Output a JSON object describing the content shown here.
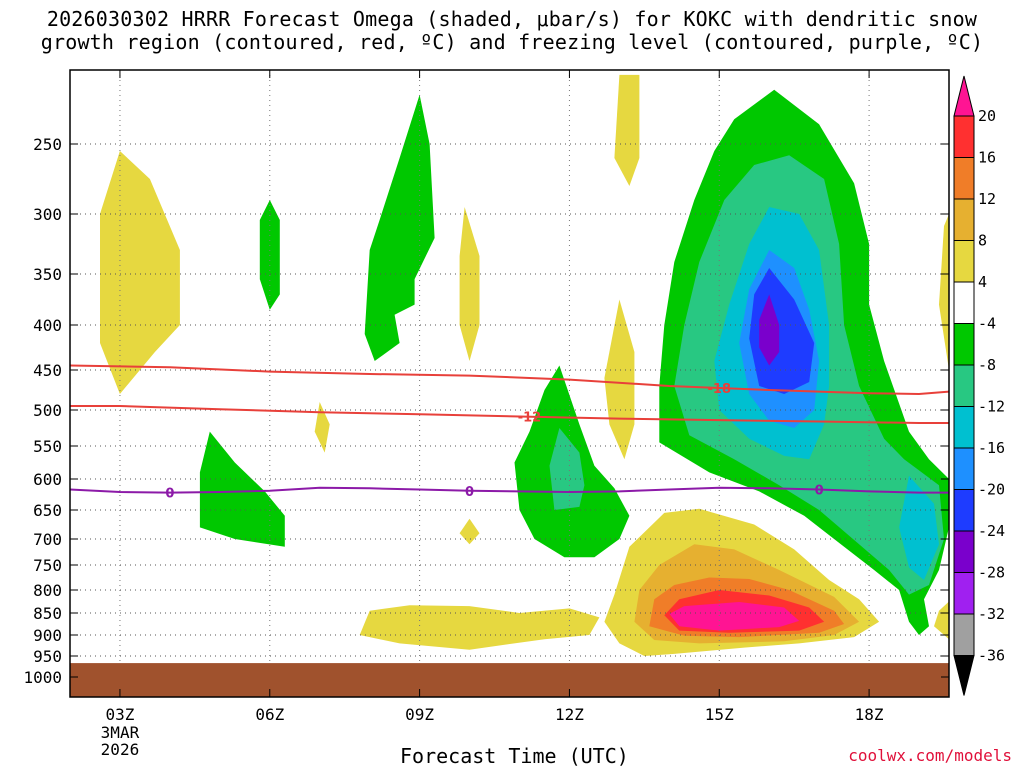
{
  "chart_data": {
    "type": "heatmap",
    "title_line1": "2026030302 HRRR Forecast Omega (shaded, μbar/s) for KOKC with dendritic snow",
    "title_line2": "growth region (contoured, red, ºC) and freezing level (contoured, purple, ºC)",
    "xlabel": "Forecast Time (UTC)",
    "ylabel": "",
    "credit": "coolwx.com/models",
    "x_range": [
      2.0,
      19.6
    ],
    "y_range": [
      220,
      1050
    ],
    "x_ticks": [
      {
        "value": 3,
        "label": "03Z"
      },
      {
        "value": 6,
        "label": "06Z"
      },
      {
        "value": 9,
        "label": "09Z"
      },
      {
        "value": 12,
        "label": "12Z"
      },
      {
        "value": 15,
        "label": "15Z"
      },
      {
        "value": 18,
        "label": "18Z"
      }
    ],
    "date_label_line1": "3MAR",
    "date_label_line2": "2026",
    "y_ticks": [
      250,
      300,
      350,
      400,
      450,
      500,
      550,
      600,
      650,
      700,
      750,
      800,
      850,
      900,
      950,
      1000
    ],
    "surface_pressure": 955,
    "surface_color": "#a0522d",
    "colorbar": {
      "levels": [
        20,
        16,
        12,
        8,
        4,
        -4,
        -8,
        -12,
        -16,
        -20,
        -24,
        -28,
        -32,
        -36
      ],
      "colors": [
        "#ff1493",
        "#ff3030",
        "#f07d28",
        "#e6b030",
        "#e6d840",
        "#ffffff",
        "#00c800",
        "#28c882",
        "#00c0d0",
        "#1e90ff",
        "#1e3cff",
        "#7a00cc",
        "#a020f0",
        "#a0a0a0",
        "#000000"
      ]
    },
    "shading": [
      {
        "color": "#e6d840",
        "points": [
          [
            3.0,
            255
          ],
          [
            3.6,
            275
          ],
          [
            4.2,
            330
          ],
          [
            4.2,
            400
          ],
          [
            3.7,
            430
          ],
          [
            3.0,
            480
          ],
          [
            2.6,
            420
          ],
          [
            2.6,
            300
          ]
        ]
      },
      {
        "color": "#00c800",
        "points": [
          [
            4.8,
            530
          ],
          [
            5.3,
            575
          ],
          [
            5.9,
            620
          ],
          [
            6.3,
            660
          ],
          [
            6.3,
            715
          ],
          [
            5.3,
            700
          ],
          [
            4.6,
            680
          ],
          [
            4.6,
            590
          ]
        ]
      },
      {
        "color": "#00c800",
        "points": [
          [
            6.0,
            290
          ],
          [
            6.2,
            305
          ],
          [
            6.2,
            370
          ],
          [
            6.0,
            385
          ],
          [
            5.8,
            355
          ],
          [
            5.8,
            305
          ]
        ]
      },
      {
        "color": "#e6d840",
        "points": [
          [
            7.0,
            490
          ],
          [
            7.2,
            520
          ],
          [
            7.1,
            560
          ],
          [
            6.9,
            530
          ]
        ]
      },
      {
        "color": "#00c800",
        "points": [
          [
            9.0,
            230
          ],
          [
            9.2,
            250
          ],
          [
            9.3,
            320
          ],
          [
            8.9,
            355
          ],
          [
            8.9,
            380
          ],
          [
            8.5,
            390
          ],
          [
            8.6,
            420
          ],
          [
            8.1,
            440
          ],
          [
            7.9,
            410
          ],
          [
            8.0,
            330
          ],
          [
            8.2,
            305
          ],
          [
            8.6,
            260
          ]
        ]
      },
      {
        "color": "#e6d840",
        "points": [
          [
            9.9,
            295
          ],
          [
            10.2,
            335
          ],
          [
            10.2,
            400
          ],
          [
            10.0,
            440
          ],
          [
            9.8,
            400
          ],
          [
            9.8,
            335
          ]
        ]
      },
      {
        "color": "#e6d840",
        "points": [
          [
            10.0,
            665
          ],
          [
            10.2,
            690
          ],
          [
            10.0,
            710
          ],
          [
            9.8,
            690
          ]
        ]
      },
      {
        "color": "#e6d840",
        "points": [
          [
            13.0,
            222
          ],
          [
            13.4,
            222
          ],
          [
            13.4,
            260
          ],
          [
            13.2,
            280
          ],
          [
            12.9,
            260
          ]
        ]
      },
      {
        "color": "#e6d840",
        "points": [
          [
            13.0,
            375
          ],
          [
            13.3,
            430
          ],
          [
            13.3,
            520
          ],
          [
            13.1,
            570
          ],
          [
            12.8,
            520
          ],
          [
            12.7,
            460
          ]
        ]
      },
      {
        "color": "#00c800",
        "points": [
          [
            11.8,
            445
          ],
          [
            12.2,
            520
          ],
          [
            12.5,
            580
          ],
          [
            12.9,
            615
          ],
          [
            13.2,
            660
          ],
          [
            13.0,
            700
          ],
          [
            12.5,
            735
          ],
          [
            11.9,
            735
          ],
          [
            11.3,
            700
          ],
          [
            11.0,
            650
          ],
          [
            10.9,
            575
          ],
          [
            11.2,
            530
          ],
          [
            11.5,
            475
          ]
        ]
      },
      {
        "color": "#28c882",
        "points": [
          [
            11.8,
            525
          ],
          [
            12.2,
            560
          ],
          [
            12.3,
            610
          ],
          [
            12.2,
            645
          ],
          [
            11.7,
            650
          ],
          [
            11.6,
            580
          ]
        ]
      },
      {
        "color": "#e6d840",
        "points": [
          [
            8.0,
            845
          ],
          [
            8.8,
            833
          ],
          [
            10.0,
            835
          ],
          [
            11.0,
            850
          ],
          [
            12.0,
            840
          ],
          [
            12.6,
            860
          ],
          [
            12.4,
            900
          ],
          [
            11.5,
            910
          ],
          [
            10.0,
            935
          ],
          [
            8.6,
            920
          ],
          [
            7.8,
            900
          ]
        ]
      },
      {
        "color": "#e6d840",
        "points": [
          [
            13.2,
            715
          ],
          [
            13.9,
            655
          ],
          [
            14.6,
            648
          ],
          [
            15.7,
            675
          ],
          [
            16.5,
            720
          ],
          [
            17.2,
            780
          ],
          [
            17.8,
            820
          ],
          [
            18.2,
            870
          ],
          [
            17.7,
            905
          ],
          [
            16.6,
            920
          ],
          [
            15.5,
            930
          ],
          [
            14.1,
            945
          ],
          [
            13.5,
            950
          ],
          [
            13.0,
            920
          ],
          [
            12.7,
            870
          ],
          [
            12.9,
            810
          ]
        ]
      },
      {
        "color": "#e6b030",
        "points": [
          [
            13.8,
            750
          ],
          [
            14.5,
            710
          ],
          [
            15.3,
            720
          ],
          [
            16.2,
            760
          ],
          [
            17.3,
            815
          ],
          [
            17.8,
            870
          ],
          [
            17.3,
            900
          ],
          [
            16.3,
            915
          ],
          [
            14.6,
            920
          ],
          [
            13.7,
            912
          ],
          [
            13.3,
            870
          ],
          [
            13.4,
            800
          ]
        ]
      },
      {
        "color": "#f07d28",
        "points": [
          [
            14.1,
            790
          ],
          [
            14.8,
            775
          ],
          [
            15.6,
            778
          ],
          [
            16.4,
            800
          ],
          [
            17.3,
            845
          ],
          [
            17.5,
            875
          ],
          [
            17.0,
            895
          ],
          [
            15.4,
            905
          ],
          [
            14.3,
            902
          ],
          [
            13.6,
            880
          ],
          [
            13.7,
            820
          ]
        ]
      },
      {
        "color": "#ff3030",
        "points": [
          [
            14.2,
            820
          ],
          [
            15.0,
            800
          ],
          [
            16.0,
            812
          ],
          [
            16.8,
            838
          ],
          [
            17.1,
            870
          ],
          [
            16.6,
            890
          ],
          [
            15.2,
            895
          ],
          [
            14.2,
            890
          ],
          [
            13.9,
            855
          ]
        ]
      },
      {
        "color": "#ff1493",
        "points": [
          [
            14.3,
            835
          ],
          [
            15.4,
            826
          ],
          [
            16.3,
            838
          ],
          [
            16.6,
            868
          ],
          [
            16.2,
            882
          ],
          [
            15.0,
            890
          ],
          [
            14.2,
            880
          ],
          [
            14.0,
            852
          ]
        ]
      },
      {
        "color": "#00c800",
        "points": [
          [
            15.3,
            240
          ],
          [
            16.1,
            228
          ],
          [
            17.0,
            242
          ],
          [
            17.7,
            278
          ],
          [
            18.0,
            325
          ],
          [
            18.0,
            380
          ],
          [
            18.3,
            440
          ],
          [
            18.8,
            530
          ],
          [
            19.2,
            570
          ],
          [
            19.6,
            600
          ],
          [
            19.6,
            680
          ],
          [
            19.4,
            760
          ],
          [
            19.1,
            820
          ],
          [
            19.2,
            880
          ],
          [
            19.0,
            900
          ],
          [
            18.8,
            870
          ],
          [
            18.6,
            800
          ],
          [
            18.1,
            760
          ],
          [
            17.3,
            700
          ],
          [
            16.7,
            660
          ],
          [
            15.8,
            620
          ],
          [
            14.8,
            590
          ],
          [
            13.8,
            545
          ],
          [
            13.8,
            470
          ],
          [
            13.9,
            400
          ],
          [
            14.1,
            340
          ],
          [
            14.5,
            290
          ],
          [
            14.9,
            255
          ]
        ]
      },
      {
        "color": "#28c882",
        "points": [
          [
            15.7,
            265
          ],
          [
            16.4,
            258
          ],
          [
            17.1,
            275
          ],
          [
            17.4,
            325
          ],
          [
            17.5,
            400
          ],
          [
            17.8,
            470
          ],
          [
            18.3,
            540
          ],
          [
            18.7,
            570
          ],
          [
            19.4,
            610
          ],
          [
            19.5,
            700
          ],
          [
            19.2,
            790
          ],
          [
            18.8,
            810
          ],
          [
            18.4,
            760
          ],
          [
            17.8,
            710
          ],
          [
            17.0,
            650
          ],
          [
            16.2,
            610
          ],
          [
            15.3,
            570
          ],
          [
            14.4,
            535
          ],
          [
            14.1,
            470
          ],
          [
            14.3,
            400
          ],
          [
            14.6,
            340
          ],
          [
            15.1,
            290
          ]
        ]
      },
      {
        "color": "#00c0d0",
        "points": [
          [
            16.0,
            295
          ],
          [
            16.6,
            300
          ],
          [
            17.0,
            330
          ],
          [
            17.2,
            400
          ],
          [
            17.2,
            470
          ],
          [
            17.1,
            520
          ],
          [
            16.8,
            570
          ],
          [
            16.3,
            565
          ],
          [
            15.6,
            540
          ],
          [
            15.0,
            500
          ],
          [
            14.9,
            440
          ],
          [
            15.2,
            380
          ],
          [
            15.6,
            325
          ]
        ]
      },
      {
        "color": "#00c0d0",
        "points": [
          [
            18.8,
            595
          ],
          [
            19.3,
            640
          ],
          [
            19.4,
            710
          ],
          [
            19.1,
            780
          ],
          [
            18.8,
            755
          ],
          [
            18.6,
            680
          ]
        ]
      },
      {
        "color": "#1e90ff",
        "points": [
          [
            16.0,
            330
          ],
          [
            16.5,
            345
          ],
          [
            16.8,
            385
          ],
          [
            17.0,
            440
          ],
          [
            16.9,
            500
          ],
          [
            16.5,
            525
          ],
          [
            16.0,
            515
          ],
          [
            15.6,
            480
          ],
          [
            15.4,
            420
          ],
          [
            15.6,
            365
          ]
        ]
      },
      {
        "color": "#1e3cff",
        "points": [
          [
            16.0,
            345
          ],
          [
            16.5,
            375
          ],
          [
            16.9,
            420
          ],
          [
            16.8,
            465
          ],
          [
            16.3,
            480
          ],
          [
            15.8,
            470
          ],
          [
            15.6,
            415
          ],
          [
            15.7,
            370
          ]
        ]
      },
      {
        "color": "#7a00cc",
        "points": [
          [
            16.0,
            370
          ],
          [
            16.2,
            400
          ],
          [
            16.2,
            430
          ],
          [
            16.0,
            445
          ],
          [
            15.8,
            425
          ],
          [
            15.8,
            395
          ]
        ]
      },
      {
        "color": "#e6d840",
        "points": [
          [
            19.6,
            300
          ],
          [
            19.6,
            450
          ],
          [
            19.4,
            380
          ],
          [
            19.5,
            310
          ]
        ]
      },
      {
        "color": "#e6d840",
        "points": [
          [
            19.6,
            825
          ],
          [
            19.6,
            910
          ],
          [
            19.3,
            880
          ],
          [
            19.4,
            845
          ]
        ]
      }
    ],
    "series": [
      {
        "name": "-18 ºC",
        "color": "#e8403a",
        "label": "-18",
        "label_x": 15.0,
        "x": [
          2.0,
          4.0,
          6.0,
          8.0,
          10.0,
          12.0,
          14.0,
          16.0,
          18.0,
          19.0,
          19.6
        ],
        "y": [
          445,
          447,
          452,
          455,
          457,
          462,
          470,
          475,
          479,
          480,
          477
        ]
      },
      {
        "name": "-12 ºC",
        "color": "#e8403a",
        "label": "-12",
        "label_x": 11.2,
        "x": [
          2.0,
          3.0,
          5.0,
          7.0,
          9.0,
          11.0,
          13.0,
          15.0,
          17.0,
          19.0,
          19.6
        ],
        "y": [
          495,
          495,
          499,
          503,
          506,
          509,
          512,
          514,
          516,
          518,
          518
        ]
      },
      {
        "name": "0 ºC freezing level",
        "color": "#8c1aa8",
        "label": "0",
        "label_x": [
          4.0,
          10.0,
          17.0
        ],
        "x": [
          2.0,
          3.0,
          4.0,
          5.0,
          6.0,
          7.0,
          8.0,
          9.0,
          10.0,
          11.0,
          12.0,
          13.0,
          14.0,
          15.0,
          16.0,
          17.0,
          18.0,
          19.0,
          19.6
        ],
        "y": [
          617,
          621,
          622,
          621,
          619,
          614,
          615,
          617,
          619,
          620,
          621,
          620,
          617,
          614,
          615,
          617,
          620,
          622,
          622
        ]
      }
    ]
  }
}
